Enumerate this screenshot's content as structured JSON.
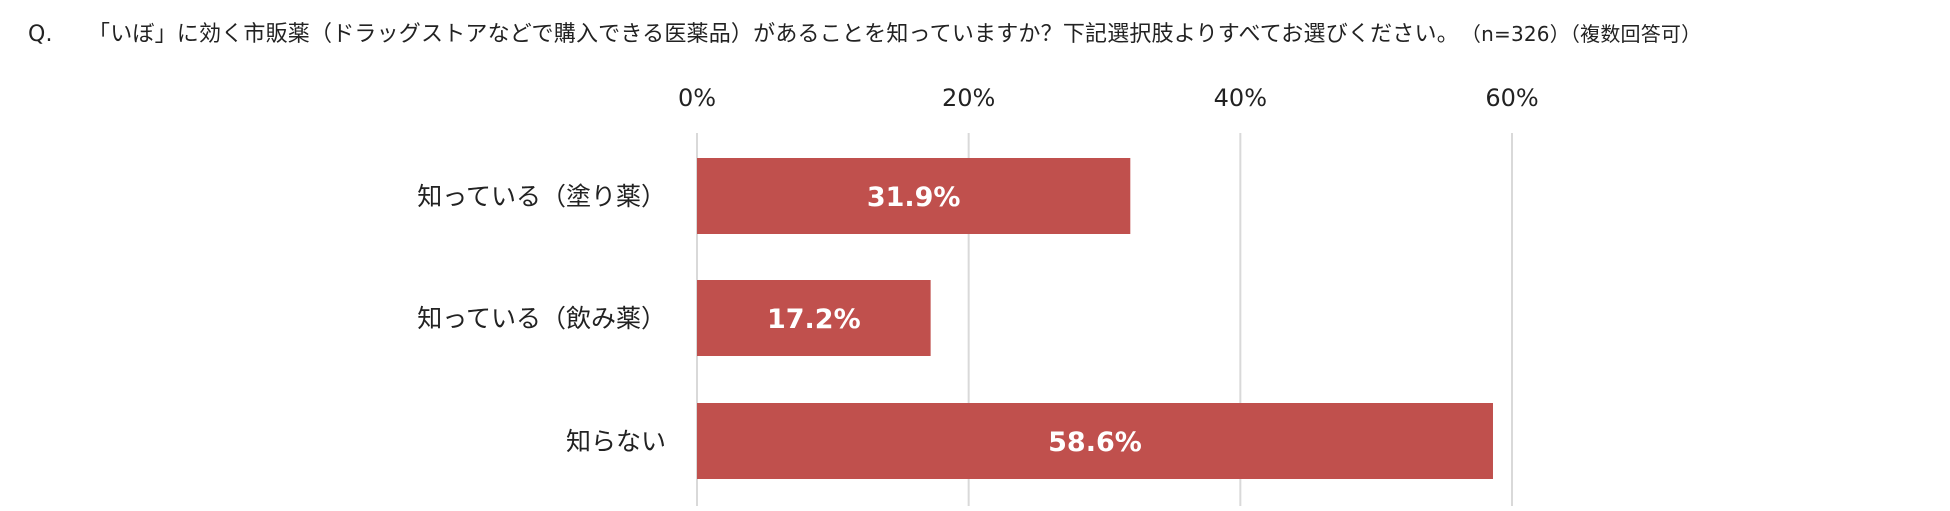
{
  "question": {
    "prefix": "Q.",
    "text": "「いぼ」に効く市販薬（ドラッグストアなどで購入できる医薬品）があることを知っていますか？下記選択肢よりすべてお選びください。",
    "note": "（n=326）（複数回答可）"
  },
  "chart_data": {
    "type": "bar",
    "orientation": "horizontal",
    "categories": [
      "知っている（塗り薬）",
      "知っている（飲み薬）",
      "知らない"
    ],
    "values": [
      31.9,
      17.2,
      58.6
    ],
    "data_labels": [
      "31.9%",
      "17.2%",
      "58.6%"
    ],
    "xlim": [
      0,
      60
    ],
    "x_ticks": [
      0,
      20,
      40,
      60
    ],
    "x_tick_labels": [
      "0%",
      "20%",
      "40%",
      "60%"
    ],
    "x_axis_position": "top",
    "grid": true,
    "bar_color": "#c0504d",
    "grid_color": "#d9d9d9"
  }
}
